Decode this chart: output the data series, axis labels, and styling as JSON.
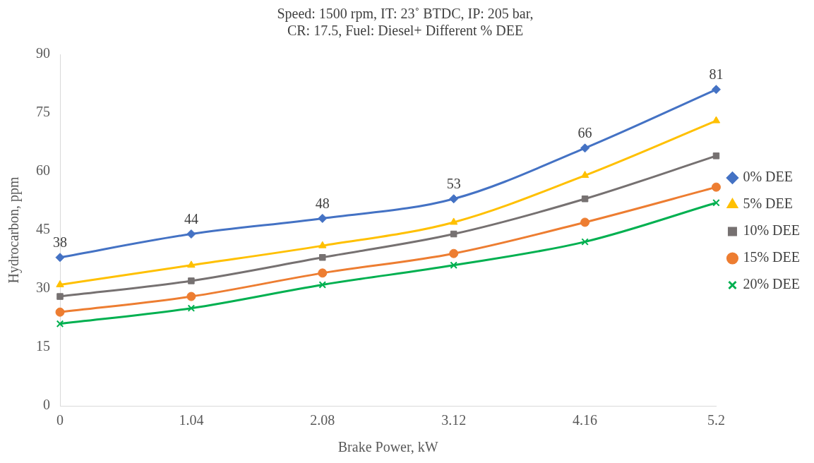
{
  "chart_data": {
    "type": "line",
    "title": "Speed: 1500 rpm, IT: 23˚ BTDC, IP: 205 bar, CR: 17.5, Fuel: Diesel+ Different % DEE",
    "xlabel": "Brake Power, kW",
    "ylabel": "Hydrocarbon, ppm",
    "categories": [
      "0",
      "1.04",
      "2.08",
      "3.12",
      "4.16",
      "5.2"
    ],
    "ylim": [
      0,
      90
    ],
    "yticks": [
      0,
      15,
      30,
      45,
      60,
      75,
      90
    ],
    "grid": false,
    "legend": "right",
    "series": [
      {
        "name": "0% DEE",
        "color": "#4472c4",
        "marker": "diamond",
        "values": [
          38,
          44,
          48,
          53,
          66,
          81
        ],
        "value_labels": [
          "38",
          "44",
          "48",
          "53",
          "66",
          "81"
        ]
      },
      {
        "name": "5% DEE",
        "color": "#ffc000",
        "marker": "triangle",
        "values": [
          31,
          36,
          41,
          47,
          59,
          73
        ]
      },
      {
        "name": "10% DEE",
        "color": "#767171",
        "marker": "square",
        "values": [
          28,
          32,
          38,
          44,
          53,
          64
        ]
      },
      {
        "name": "15% DEE",
        "color": "#ed7d31",
        "marker": "circle",
        "values": [
          24,
          28,
          34,
          39,
          47,
          56
        ]
      },
      {
        "name": "20% DEE",
        "color": "#00b050",
        "marker": "cross",
        "values": [
          21,
          25,
          31,
          36,
          42,
          52
        ]
      }
    ]
  }
}
